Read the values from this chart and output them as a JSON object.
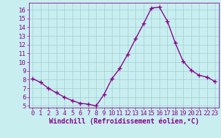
{
  "x": [
    0,
    1,
    2,
    3,
    4,
    5,
    6,
    7,
    8,
    9,
    10,
    11,
    12,
    13,
    14,
    15,
    16,
    17,
    18,
    19,
    20,
    21,
    22,
    23
  ],
  "y": [
    8.1,
    7.7,
    7.0,
    6.5,
    6.0,
    5.6,
    5.3,
    5.2,
    5.0,
    6.3,
    8.1,
    9.3,
    10.9,
    12.7,
    14.4,
    16.2,
    16.3,
    14.7,
    12.2,
    10.1,
    9.1,
    8.5,
    8.3,
    7.8
  ],
  "line_color": "#880088",
  "marker": "+",
  "marker_size": 4,
  "linewidth": 1.0,
  "bg_color": "#c8eef0",
  "grid_color": "#a0ccd0",
  "xlabel": "Windchill (Refroidissement éolien,°C)",
  "xlabel_color": "#880088",
  "xlabel_fontsize": 7,
  "tick_color": "#880088",
  "tick_fontsize": 6.5,
  "ylim": [
    4.8,
    16.8
  ],
  "xlim": [
    -0.5,
    23.5
  ],
  "yticks": [
    5,
    6,
    7,
    8,
    9,
    10,
    11,
    12,
    13,
    14,
    15,
    16
  ],
  "xticks": [
    0,
    1,
    2,
    3,
    4,
    5,
    6,
    7,
    8,
    9,
    10,
    11,
    12,
    13,
    14,
    15,
    16,
    17,
    18,
    19,
    20,
    21,
    22,
    23
  ]
}
